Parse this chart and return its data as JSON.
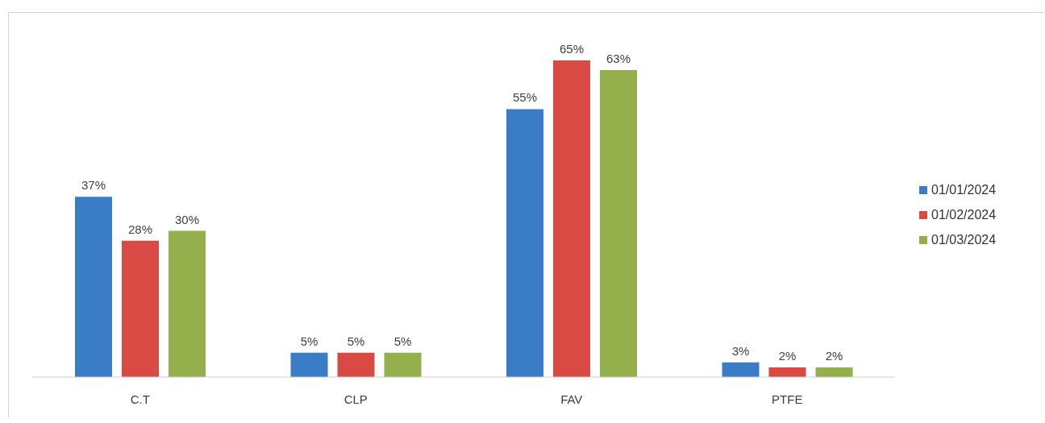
{
  "chart_data": {
    "type": "bar",
    "categories": [
      "C.T",
      "CLP",
      "FAV",
      "PTFE"
    ],
    "series": [
      {
        "name": "01/01/2024",
        "color": "#3a7cc6",
        "values": [
          37,
          5,
          55,
          3
        ],
        "value_labels": [
          "37%",
          "5%",
          "55%",
          "3%"
        ]
      },
      {
        "name": "01/02/2024",
        "color": "#d94a45",
        "values": [
          28,
          5,
          65,
          2
        ],
        "value_labels": [
          "28%",
          "5%",
          "65%",
          "2%"
        ]
      },
      {
        "name": "01/03/2024",
        "color": "#93b04c",
        "values": [
          30,
          5,
          63,
          2
        ],
        "value_labels": [
          "30%",
          "5%",
          "63%",
          "2%"
        ]
      }
    ],
    "legend": "right",
    "grid": false,
    "tick_labels": "x"
  }
}
